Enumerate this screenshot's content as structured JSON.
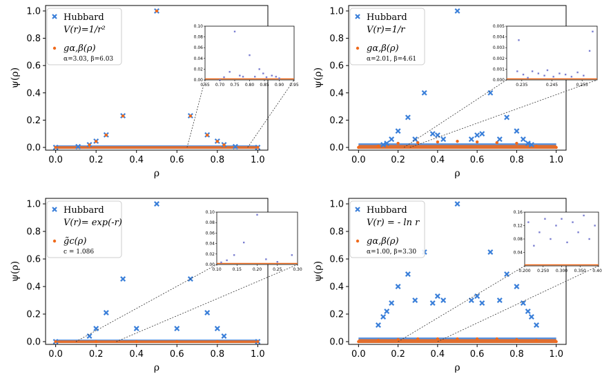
{
  "colors": {
    "hubbard": "#3a7fd9",
    "fit": "#f06a1c",
    "frame": "#000000",
    "connector": "#333333"
  },
  "chart_data": [
    {
      "type": "scatter",
      "xlabel": "ρ",
      "ylabel": "ψ(ρ)",
      "xlim": [
        -0.05,
        1.05
      ],
      "ylim": [
        -0.02,
        1.04
      ],
      "xticks": [
        "0.0",
        "0.2",
        "0.4",
        "0.6",
        "0.8",
        "1.0"
      ],
      "yticks": [
        "0.0",
        "0.2",
        "0.4",
        "0.6",
        "0.8",
        "1.0"
      ],
      "legend": {
        "hubbard_label": "Hubbard",
        "potential_label": "V(r)=1/r²",
        "fit_label": "gα,β(ρ)",
        "fit_params": "α=3.03, β=6.03"
      },
      "series": [
        {
          "name": "Hubbard",
          "x": [
            0.0,
            0.111,
            0.167,
            0.2,
            0.25,
            0.333,
            0.5,
            0.667,
            0.75,
            0.8,
            0.833,
            0.889,
            1.0
          ],
          "y": [
            0.0,
            0.006,
            0.02,
            0.046,
            0.092,
            0.232,
            1.0,
            0.232,
            0.092,
            0.046,
            0.02,
            0.006,
            0.0
          ]
        },
        {
          "name": "fit",
          "x": [
            0.0,
            0.167,
            0.2,
            0.25,
            0.333,
            0.5,
            0.667,
            0.75,
            0.8,
            0.833,
            1.0
          ],
          "y": [
            0.0,
            0.018,
            0.044,
            0.09,
            0.23,
            1.0,
            0.23,
            0.09,
            0.044,
            0.018,
            0.0
          ]
        }
      ],
      "inset": {
        "xlim": [
          0.65,
          0.95
        ],
        "ylim": [
          0.0,
          0.1
        ],
        "xticks": [
          "0.65",
          "0.70",
          "0.75",
          "0.80",
          "0.85",
          "0.90",
          "0.95"
        ],
        "yticks": [
          "0.00",
          "0.02",
          "0.04",
          "0.06",
          "0.08",
          "0.10"
        ],
        "x": [
          0.7,
          0.714,
          0.733,
          0.75,
          0.767,
          0.778,
          0.8,
          0.818,
          0.833,
          0.846,
          0.857,
          0.875,
          0.889,
          0.9
        ],
        "y": [
          0.0,
          0.005,
          0.015,
          0.09,
          0.008,
          0.006,
          0.046,
          0.006,
          0.02,
          0.012,
          0.005,
          0.008,
          0.006,
          0.003
        ]
      }
    },
    {
      "type": "scatter",
      "xlabel": "ρ",
      "ylabel": "ψ(ρ)",
      "xlim": [
        -0.05,
        1.05
      ],
      "ylim": [
        -0.02,
        1.04
      ],
      "xticks": [
        "0.0",
        "0.2",
        "0.4",
        "0.6",
        "0.8",
        "1.0"
      ],
      "yticks": [
        "0.0",
        "0.2",
        "0.4",
        "0.6",
        "0.8",
        "1.0"
      ],
      "legend": {
        "hubbard_label": "Hubbard",
        "potential_label": "V(r)=1/r",
        "fit_label": "gα,β(ρ)",
        "fit_params": "α=2.01, β=4.61"
      },
      "series": [
        {
          "name": "Hubbard",
          "x": [
            0.125,
            0.143,
            0.167,
            0.2,
            0.25,
            0.286,
            0.333,
            0.375,
            0.4,
            0.429,
            0.5,
            0.571,
            0.6,
            0.625,
            0.667,
            0.714,
            0.75,
            0.8,
            0.833,
            0.857,
            0.875
          ],
          "y": [
            0.02,
            0.03,
            0.06,
            0.12,
            0.22,
            0.06,
            0.4,
            0.1,
            0.09,
            0.06,
            1.0,
            0.06,
            0.09,
            0.1,
            0.4,
            0.06,
            0.22,
            0.12,
            0.06,
            0.03,
            0.02
          ]
        },
        {
          "name": "fit",
          "x": [
            0.0,
            0.1,
            0.2,
            0.3,
            0.4,
            0.5,
            0.6,
            0.7,
            0.8,
            0.9,
            1.0
          ],
          "y": [
            0.0,
            0.01,
            0.03,
            0.035,
            0.04,
            0.045,
            0.04,
            0.035,
            0.03,
            0.01,
            0.0
          ]
        }
      ],
      "inset": {
        "xlim": [
          0.23,
          0.26
        ],
        "ylim": [
          0.0,
          0.005
        ],
        "xticks": [
          "0.235",
          "0.245",
          "0.255"
        ],
        "yticks": [
          "0.000",
          "0.001",
          "0.002",
          "0.003",
          "0.004",
          "0.005"
        ],
        "x": [
          0.2335,
          0.234,
          0.2355,
          0.237,
          0.2385,
          0.2405,
          0.2425,
          0.2435,
          0.2455,
          0.2475,
          0.2495,
          0.2515,
          0.2535,
          0.2555,
          0.2575,
          0.2585
        ],
        "y": [
          0.0008,
          0.0037,
          0.0005,
          0.0002,
          0.0008,
          0.0006,
          0.0004,
          0.0009,
          0.0003,
          0.0006,
          0.0005,
          0.0003,
          0.0007,
          0.0004,
          0.0027,
          0.0045
        ]
      }
    },
    {
      "type": "scatter",
      "xlabel": "ρ",
      "ylabel": "ψ(ρ)",
      "xlim": [
        -0.05,
        1.05
      ],
      "ylim": [
        -0.02,
        1.04
      ],
      "xticks": [
        "0.0",
        "0.2",
        "0.4",
        "0.6",
        "0.8",
        "1.0"
      ],
      "yticks": [
        "0.0",
        "0.2",
        "0.4",
        "0.6",
        "0.8",
        "1.0"
      ],
      "legend": {
        "hubbard_label": "Hubbard",
        "potential_label": "V(r)= exp(-r)",
        "fit_label": "g̃c(ρ)",
        "fit_params": "c = 1.086"
      },
      "series": [
        {
          "name": "Hubbard",
          "x": [
            0.0,
            0.167,
            0.2,
            0.25,
            0.333,
            0.4,
            0.5,
            0.6,
            0.667,
            0.75,
            0.8,
            0.833,
            1.0
          ],
          "y": [
            0.0,
            0.04,
            0.095,
            0.21,
            0.455,
            0.095,
            1.0,
            0.095,
            0.455,
            0.21,
            0.095,
            0.04,
            0.0
          ]
        },
        {
          "name": "fit",
          "x": [
            0.0,
            0.2,
            0.4,
            0.6,
            0.8,
            1.0
          ],
          "y": [
            0.0,
            0.0,
            0.0,
            0.0,
            0.0,
            0.0
          ]
        }
      ],
      "inset": {
        "xlim": [
          0.1,
          0.3
        ],
        "ylim": [
          0.0,
          0.1
        ],
        "xticks": [
          "0.10",
          "0.15",
          "0.20",
          "0.25",
          "0.30"
        ],
        "yticks": [
          "0.00",
          "0.02",
          "0.04",
          "0.06",
          "0.08",
          "0.10"
        ],
        "x": [
          0.111,
          0.125,
          0.143,
          0.167,
          0.2,
          0.222,
          0.25,
          0.286
        ],
        "y": [
          0.004,
          0.008,
          0.018,
          0.042,
          0.095,
          0.01,
          0.005,
          0.018
        ]
      }
    },
    {
      "type": "scatter",
      "xlabel": "ρ",
      "ylabel": "ψ(ρ)",
      "xlim": [
        -0.05,
        1.05
      ],
      "ylim": [
        -0.02,
        1.04
      ],
      "xticks": [
        "0.0",
        "0.2",
        "0.4",
        "0.6",
        "0.8",
        "1.0"
      ],
      "yticks": [
        "0.0",
        "0.2",
        "0.4",
        "0.6",
        "0.8",
        "1.0"
      ],
      "legend": {
        "hubbard_label": "Hubbard",
        "potential_label": "V(r) = - ln r",
        "fit_label": "gα,β(ρ)",
        "fit_params": "α=1.00, β=3.30"
      },
      "series": [
        {
          "name": "Hubbard",
          "x": [
            0.1,
            0.125,
            0.143,
            0.167,
            0.2,
            0.25,
            0.286,
            0.333,
            0.375,
            0.4,
            0.429,
            0.5,
            0.571,
            0.6,
            0.625,
            0.667,
            0.714,
            0.75,
            0.8,
            0.833,
            0.857,
            0.875,
            0.9
          ],
          "y": [
            0.12,
            0.18,
            0.22,
            0.28,
            0.4,
            0.49,
            0.3,
            0.65,
            0.28,
            0.33,
            0.3,
            1.0,
            0.3,
            0.33,
            0.28,
            0.65,
            0.3,
            0.49,
            0.4,
            0.28,
            0.22,
            0.18,
            0.12
          ]
        },
        {
          "name": "fit",
          "x": [
            0.0,
            0.1,
            0.2,
            0.3,
            0.4,
            0.5,
            0.6,
            0.7,
            0.8,
            0.9,
            1.0
          ],
          "y": [
            0.0,
            0.01,
            0.015,
            0.02,
            0.02,
            0.02,
            0.02,
            0.02,
            0.015,
            0.01,
            0.0
          ]
        }
      ],
      "inset": {
        "xlim": [
          0.2,
          0.4
        ],
        "ylim": [
          0.0,
          0.16
        ],
        "xticks": [
          "0.200",
          "0.250",
          "0.300",
          "0.350",
          "0.400"
        ],
        "yticks": [
          "0.04",
          "0.08",
          "0.12",
          "0.16"
        ],
        "x": [
          0.21,
          0.225,
          0.24,
          0.255,
          0.27,
          0.285,
          0.3,
          0.315,
          0.33,
          0.345,
          0.36,
          0.375,
          0.39
        ],
        "y": [
          0.13,
          0.06,
          0.1,
          0.14,
          0.08,
          0.12,
          0.14,
          0.07,
          0.13,
          0.1,
          0.15,
          0.08,
          0.12
        ]
      }
    }
  ]
}
